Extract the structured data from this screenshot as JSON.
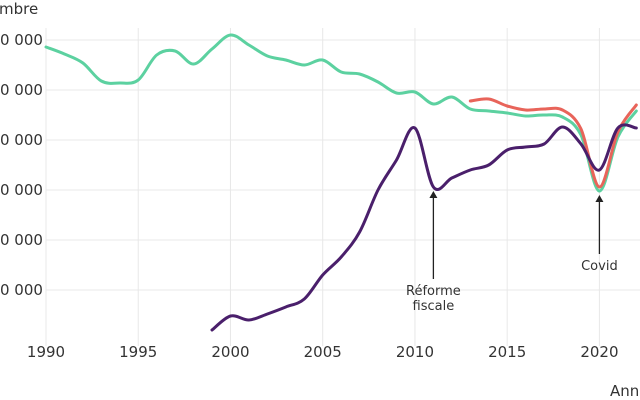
{
  "chart_data": {
    "type": "line",
    "ylabel": "mbre",
    "xlabel": "Ann",
    "x_ticks": [
      "1990",
      "1995",
      "2000",
      "2005",
      "2010",
      "2015",
      "2020"
    ],
    "y_ticks": [
      {
        "value": 50000,
        "label": "0 000"
      },
      {
        "value": 100000,
        "label": "0 000"
      },
      {
        "value": 150000,
        "label": "0 000"
      },
      {
        "value": 200000,
        "label": "0 000"
      },
      {
        "value": 250000,
        "label": "0 000"
      },
      {
        "value": 300000,
        "label": "0 000"
      }
    ],
    "xlim": [
      1990,
      2022.2
    ],
    "ylim": [
      -10000,
      340000
    ],
    "grid": true,
    "series": [
      {
        "color": "#5cd1a0",
        "points": [
          [
            1990,
            293000
          ],
          [
            1991,
            286000
          ],
          [
            1992,
            277000
          ],
          [
            1993,
            259000
          ],
          [
            1994,
            257000
          ],
          [
            1995,
            260000
          ],
          [
            1996,
            285000
          ],
          [
            1997,
            289000
          ],
          [
            1998,
            276000
          ],
          [
            1999,
            291000
          ],
          [
            2000,
            305000
          ],
          [
            2001,
            295000
          ],
          [
            2002,
            284000
          ],
          [
            2003,
            280000
          ],
          [
            2004,
            275000
          ],
          [
            2005,
            280000
          ],
          [
            2006,
            268000
          ],
          [
            2007,
            266000
          ],
          [
            2008,
            258000
          ],
          [
            2009,
            247000
          ],
          [
            2010,
            248000
          ],
          [
            2011,
            236000
          ],
          [
            2012,
            243000
          ],
          [
            2013,
            231000
          ],
          [
            2014,
            229000
          ],
          [
            2015,
            227000
          ],
          [
            2016,
            224000
          ],
          [
            2017,
            225000
          ],
          [
            2018,
            223000
          ],
          [
            2019,
            205000
          ],
          [
            2020,
            149000
          ],
          [
            2021,
            203000
          ],
          [
            2022,
            229000
          ]
        ]
      },
      {
        "color": "#e8645a",
        "points": [
          [
            2013,
            239000
          ],
          [
            2014,
            241000
          ],
          [
            2015,
            234000
          ],
          [
            2016,
            230000
          ],
          [
            2017,
            231000
          ],
          [
            2018,
            230000
          ],
          [
            2019,
            211000
          ],
          [
            2020,
            153000
          ],
          [
            2021,
            208000
          ],
          [
            2022,
            235000
          ]
        ]
      },
      {
        "color": "#4a1f6b",
        "points": [
          [
            1999,
            10000
          ],
          [
            2000,
            24000
          ],
          [
            2001,
            20000
          ],
          [
            2002,
            26000
          ],
          [
            2003,
            33000
          ],
          [
            2004,
            41000
          ],
          [
            2005,
            65000
          ],
          [
            2006,
            83000
          ],
          [
            2007,
            108000
          ],
          [
            2008,
            150000
          ],
          [
            2009,
            180000
          ],
          [
            2010,
            212000
          ],
          [
            2011,
            153000
          ],
          [
            2012,
            162000
          ],
          [
            2013,
            170000
          ],
          [
            2014,
            175000
          ],
          [
            2015,
            190000
          ],
          [
            2016,
            193000
          ],
          [
            2017,
            196000
          ],
          [
            2018,
            213000
          ],
          [
            2019,
            196000
          ],
          [
            2020,
            170000
          ],
          [
            2021,
            212000
          ],
          [
            2022,
            212000
          ]
        ]
      }
    ],
    "annotations": [
      {
        "lines": [
          "Réforme",
          "fiscale"
        ],
        "x": 2011,
        "y": 153000,
        "label_y": 45000
      },
      {
        "lines": [
          "Covid"
        ],
        "x": 2020,
        "y": 149000,
        "label_y": 70000
      }
    ]
  }
}
